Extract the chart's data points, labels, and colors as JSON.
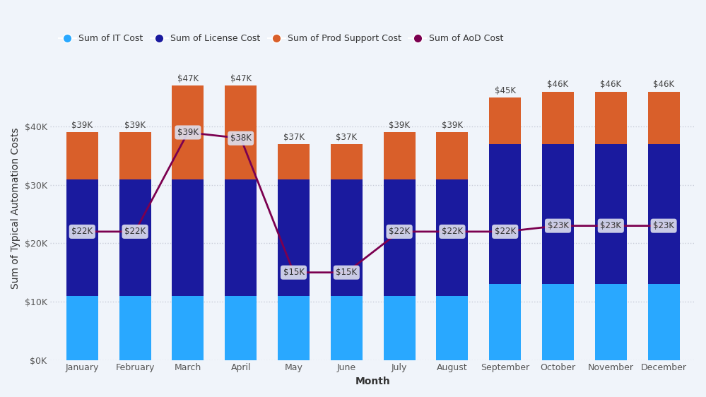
{
  "months": [
    "January",
    "February",
    "March",
    "April",
    "May",
    "June",
    "July",
    "August",
    "September",
    "October",
    "November",
    "December"
  ],
  "it_cost": [
    11000,
    11000,
    11000,
    11000,
    11000,
    11000,
    11000,
    11000,
    13000,
    13000,
    13000,
    13000
  ],
  "license_cost": [
    20000,
    20000,
    20000,
    20000,
    20000,
    20000,
    20000,
    20000,
    24000,
    24000,
    24000,
    24000
  ],
  "prod_support": [
    8000,
    8000,
    16000,
    16000,
    6000,
    6000,
    8000,
    8000,
    8000,
    9000,
    9000,
    9000
  ],
  "total_labels": [
    "$39K",
    "$39K",
    "$47K",
    "$47K",
    "$37K",
    "$37K",
    "$39K",
    "$39K",
    "$45K",
    "$46K",
    "$46K",
    "$46K"
  ],
  "aod_cost": [
    22000,
    22000,
    39000,
    38000,
    15000,
    15000,
    22000,
    22000,
    22000,
    23000,
    23000,
    23000
  ],
  "aod_labels": [
    "$22K",
    "$22K",
    "$39K",
    "$38K",
    "$15K",
    "$15K",
    "$22K",
    "$22K",
    "$22K",
    "$23K",
    "$23K",
    "$23K"
  ],
  "color_it": "#29a8ff",
  "color_license": "#1a1a9e",
  "color_prod": "#d95f2a",
  "color_aod": "#7b0050",
  "color_line": "#7b0050",
  "bg_color": "#f0f4fa",
  "grid_color": "#c8ccd8",
  "ylabel": "Sum of Typical Automation Costs",
  "xlabel": "Month",
  "ylim": [
    0,
    52000
  ],
  "yticks": [
    0,
    10000,
    20000,
    30000,
    40000
  ],
  "ytick_labels": [
    "$0K",
    "$10K",
    "$20K",
    "$30K",
    "$40K"
  ],
  "legend_labels": [
    "Sum of IT Cost",
    "Sum of License Cost",
    "Sum of Prod Support Cost",
    "Sum of AoD Cost"
  ],
  "axis_fontsize": 10,
  "tick_fontsize": 9,
  "annotation_fontsize": 8.5
}
